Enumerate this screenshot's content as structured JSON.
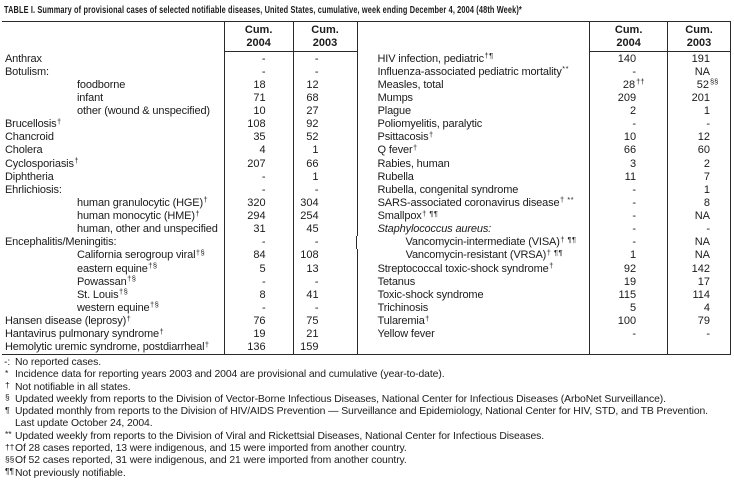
{
  "title": "TABLE I. Summary of provisional cases of selected notifiable diseases, United States, cumulative, week ending December 4, 2004 (48th Week)*",
  "colors": {
    "text": "#1b1b1b",
    "rule": "#2a2a2a",
    "background": "#ffffff"
  },
  "table": {
    "header": {
      "cum": "Cum.",
      "y2004": "2004",
      "y2003": "2003"
    },
    "left_rows": [
      {
        "name": "Anthrax",
        "v04": "-",
        "v03": "-"
      },
      {
        "name": "Botulism:",
        "v04": "-",
        "v03": "-"
      },
      {
        "name": "foodborne",
        "indent": true,
        "v04": "18",
        "v03": "12"
      },
      {
        "name": "infant",
        "indent": true,
        "v04": "71",
        "v03": "68"
      },
      {
        "name": "other (wound & unspecified)",
        "indent": true,
        "v04": "10",
        "v03": "27"
      },
      {
        "name": "Brucellosis",
        "sup": "†",
        "v04": "108",
        "v03": "92"
      },
      {
        "name": "Chancroid",
        "v04": "35",
        "v03": "52"
      },
      {
        "name": "Cholera",
        "v04": "4",
        "v03": "1"
      },
      {
        "name": "Cyclosporiasis",
        "sup": "†",
        "v04": "207",
        "v03": "66"
      },
      {
        "name": "Diphtheria",
        "v04": "-",
        "v03": "1"
      },
      {
        "name": "Ehrlichiosis:",
        "v04": "-",
        "v03": "-"
      },
      {
        "name": "human granulocytic (HGE)",
        "sup": "†",
        "indent": true,
        "v04": "320",
        "v03": "304"
      },
      {
        "name": "human monocytic (HME)",
        "sup": "†",
        "indent": true,
        "v04": "294",
        "v03": "254"
      },
      {
        "name": "human, other and unspecified",
        "indent": true,
        "v04": "31",
        "v03": "45"
      },
      {
        "name": "Encephalitis/Meningitis:",
        "v04": "-",
        "v03": "-"
      },
      {
        "name": "California serogroup viral",
        "sup": "†§",
        "indent": true,
        "v04": "84",
        "v03": "108"
      },
      {
        "name": "eastern equine",
        "sup": "†§",
        "indent": true,
        "v04": "5",
        "v03": "13"
      },
      {
        "name": "Powassan",
        "sup": "†§",
        "indent": true,
        "v04": "-",
        "v03": "-"
      },
      {
        "name": "St. Louis",
        "sup": "†§",
        "indent": true,
        "v04": "8",
        "v03": "41"
      },
      {
        "name": "western equine",
        "sup": "†§",
        "indent": true,
        "v04": "-",
        "v03": "-"
      },
      {
        "name": "Hansen disease (leprosy)",
        "sup": "†",
        "v04": "76",
        "v03": "75"
      },
      {
        "name": "Hantavirus pulmonary syndrome",
        "sup": "†",
        "v04": "19",
        "v03": "21"
      },
      {
        "name": "Hemolytic uremic syndrome, postdiarrheal",
        "sup": "†",
        "v04": "136",
        "v03": "159"
      }
    ],
    "right_rows": [
      {
        "name": "HIV infection, pediatric",
        "sup": "†¶",
        "v04": "140",
        "v03": "191"
      },
      {
        "name": "Influenza-associated pediatric mortality",
        "sup": "**",
        "v04": "-",
        "v03": "NA"
      },
      {
        "name": "Measles, total",
        "v04": "28",
        "v04s": "††",
        "v03": "52",
        "v03s": "§§"
      },
      {
        "name": "Mumps",
        "v04": "209",
        "v03": "201"
      },
      {
        "name": "Plague",
        "v04": "2",
        "v03": "1"
      },
      {
        "name": "Poliomyelitis, paralytic",
        "v04": "-",
        "v03": "-"
      },
      {
        "name": "Psittacosis",
        "sup": "†",
        "v04": "10",
        "v03": "12"
      },
      {
        "name": "Q fever",
        "sup": "†",
        "v04": "66",
        "v03": "60"
      },
      {
        "name": "Rabies, human",
        "v04": "3",
        "v03": "2"
      },
      {
        "name": "Rubella",
        "v04": "11",
        "v03": "7"
      },
      {
        "name": "Rubella, congenital syndrome",
        "v04": "-",
        "v03": "1"
      },
      {
        "name": "SARS-associated coronavirus disease",
        "sup": "† **",
        "v04": "-",
        "v03": "8"
      },
      {
        "name": "Smallpox",
        "sup": "† ¶¶",
        "v04": "-",
        "v03": "NA"
      },
      {
        "name": "Staphylococcus aureus:",
        "italic": true,
        "v04": "-",
        "v03": "-"
      },
      {
        "name": "Vancomycin-intermediate (VISA)",
        "sup": "† ¶¶",
        "indent": true,
        "v04": "-",
        "v03": "NA"
      },
      {
        "name": "Vancomycin-resistant (VRSA)",
        "sup": "† ¶¶",
        "indent": true,
        "v04": "1",
        "v03": "NA"
      },
      {
        "name": "Streptococcal toxic-shock syndrome",
        "sup": "†",
        "v04": "92",
        "v03": "142"
      },
      {
        "name": "Tetanus",
        "v04": "19",
        "v03": "17"
      },
      {
        "name": "Toxic-shock syndrome",
        "v04": "115",
        "v03": "114"
      },
      {
        "name": "Trichinosis",
        "v04": "5",
        "v03": "4"
      },
      {
        "name": "Tularemia",
        "sup": "†",
        "v04": "100",
        "v03": "79"
      },
      {
        "name": "Yellow fever",
        "v04": "-",
        "v03": "-"
      }
    ]
  },
  "footnotes": [
    {
      "marker": "-:",
      "text": "No reported cases.",
      "raised": false
    },
    {
      "marker": "*",
      "text": "Incidence data for reporting years 2003 and 2004 are provisional and cumulative (year-to-date).",
      "raised": true
    },
    {
      "marker": "†",
      "text": "Not notifiable in all states.",
      "raised": true
    },
    {
      "marker": "§",
      "text": "Updated weekly from reports to the Division of Vector-Borne Infectious Diseases, National Center for Infectious Diseases (ArboNet Surveillance).",
      "raised": true
    },
    {
      "marker": "¶",
      "text": "Updated monthly from reports to the Division of HIV/AIDS Prevention — Surveillance and Epidemiology, National Center for HIV, STD, and TB Prevention.",
      "raised": true
    },
    {
      "marker": "",
      "text": "Last update October 24, 2004.",
      "raised": false
    },
    {
      "marker": "**",
      "text": "Updated weekly from reports to the Division of Viral and Rickettsial Diseases, National Center for Infectious Diseases.",
      "raised": true
    },
    {
      "marker": "††",
      "text": "Of 28 cases reported, 13 were indigenous, and 15 were imported from another country.",
      "raised": true
    },
    {
      "marker": "§§",
      "text": "Of 52 cases reported, 31 were indigenous, and 21 were imported from another country.",
      "raised": true
    },
    {
      "marker": "¶¶",
      "text": "Not previously notifiable.",
      "raised": true
    }
  ]
}
